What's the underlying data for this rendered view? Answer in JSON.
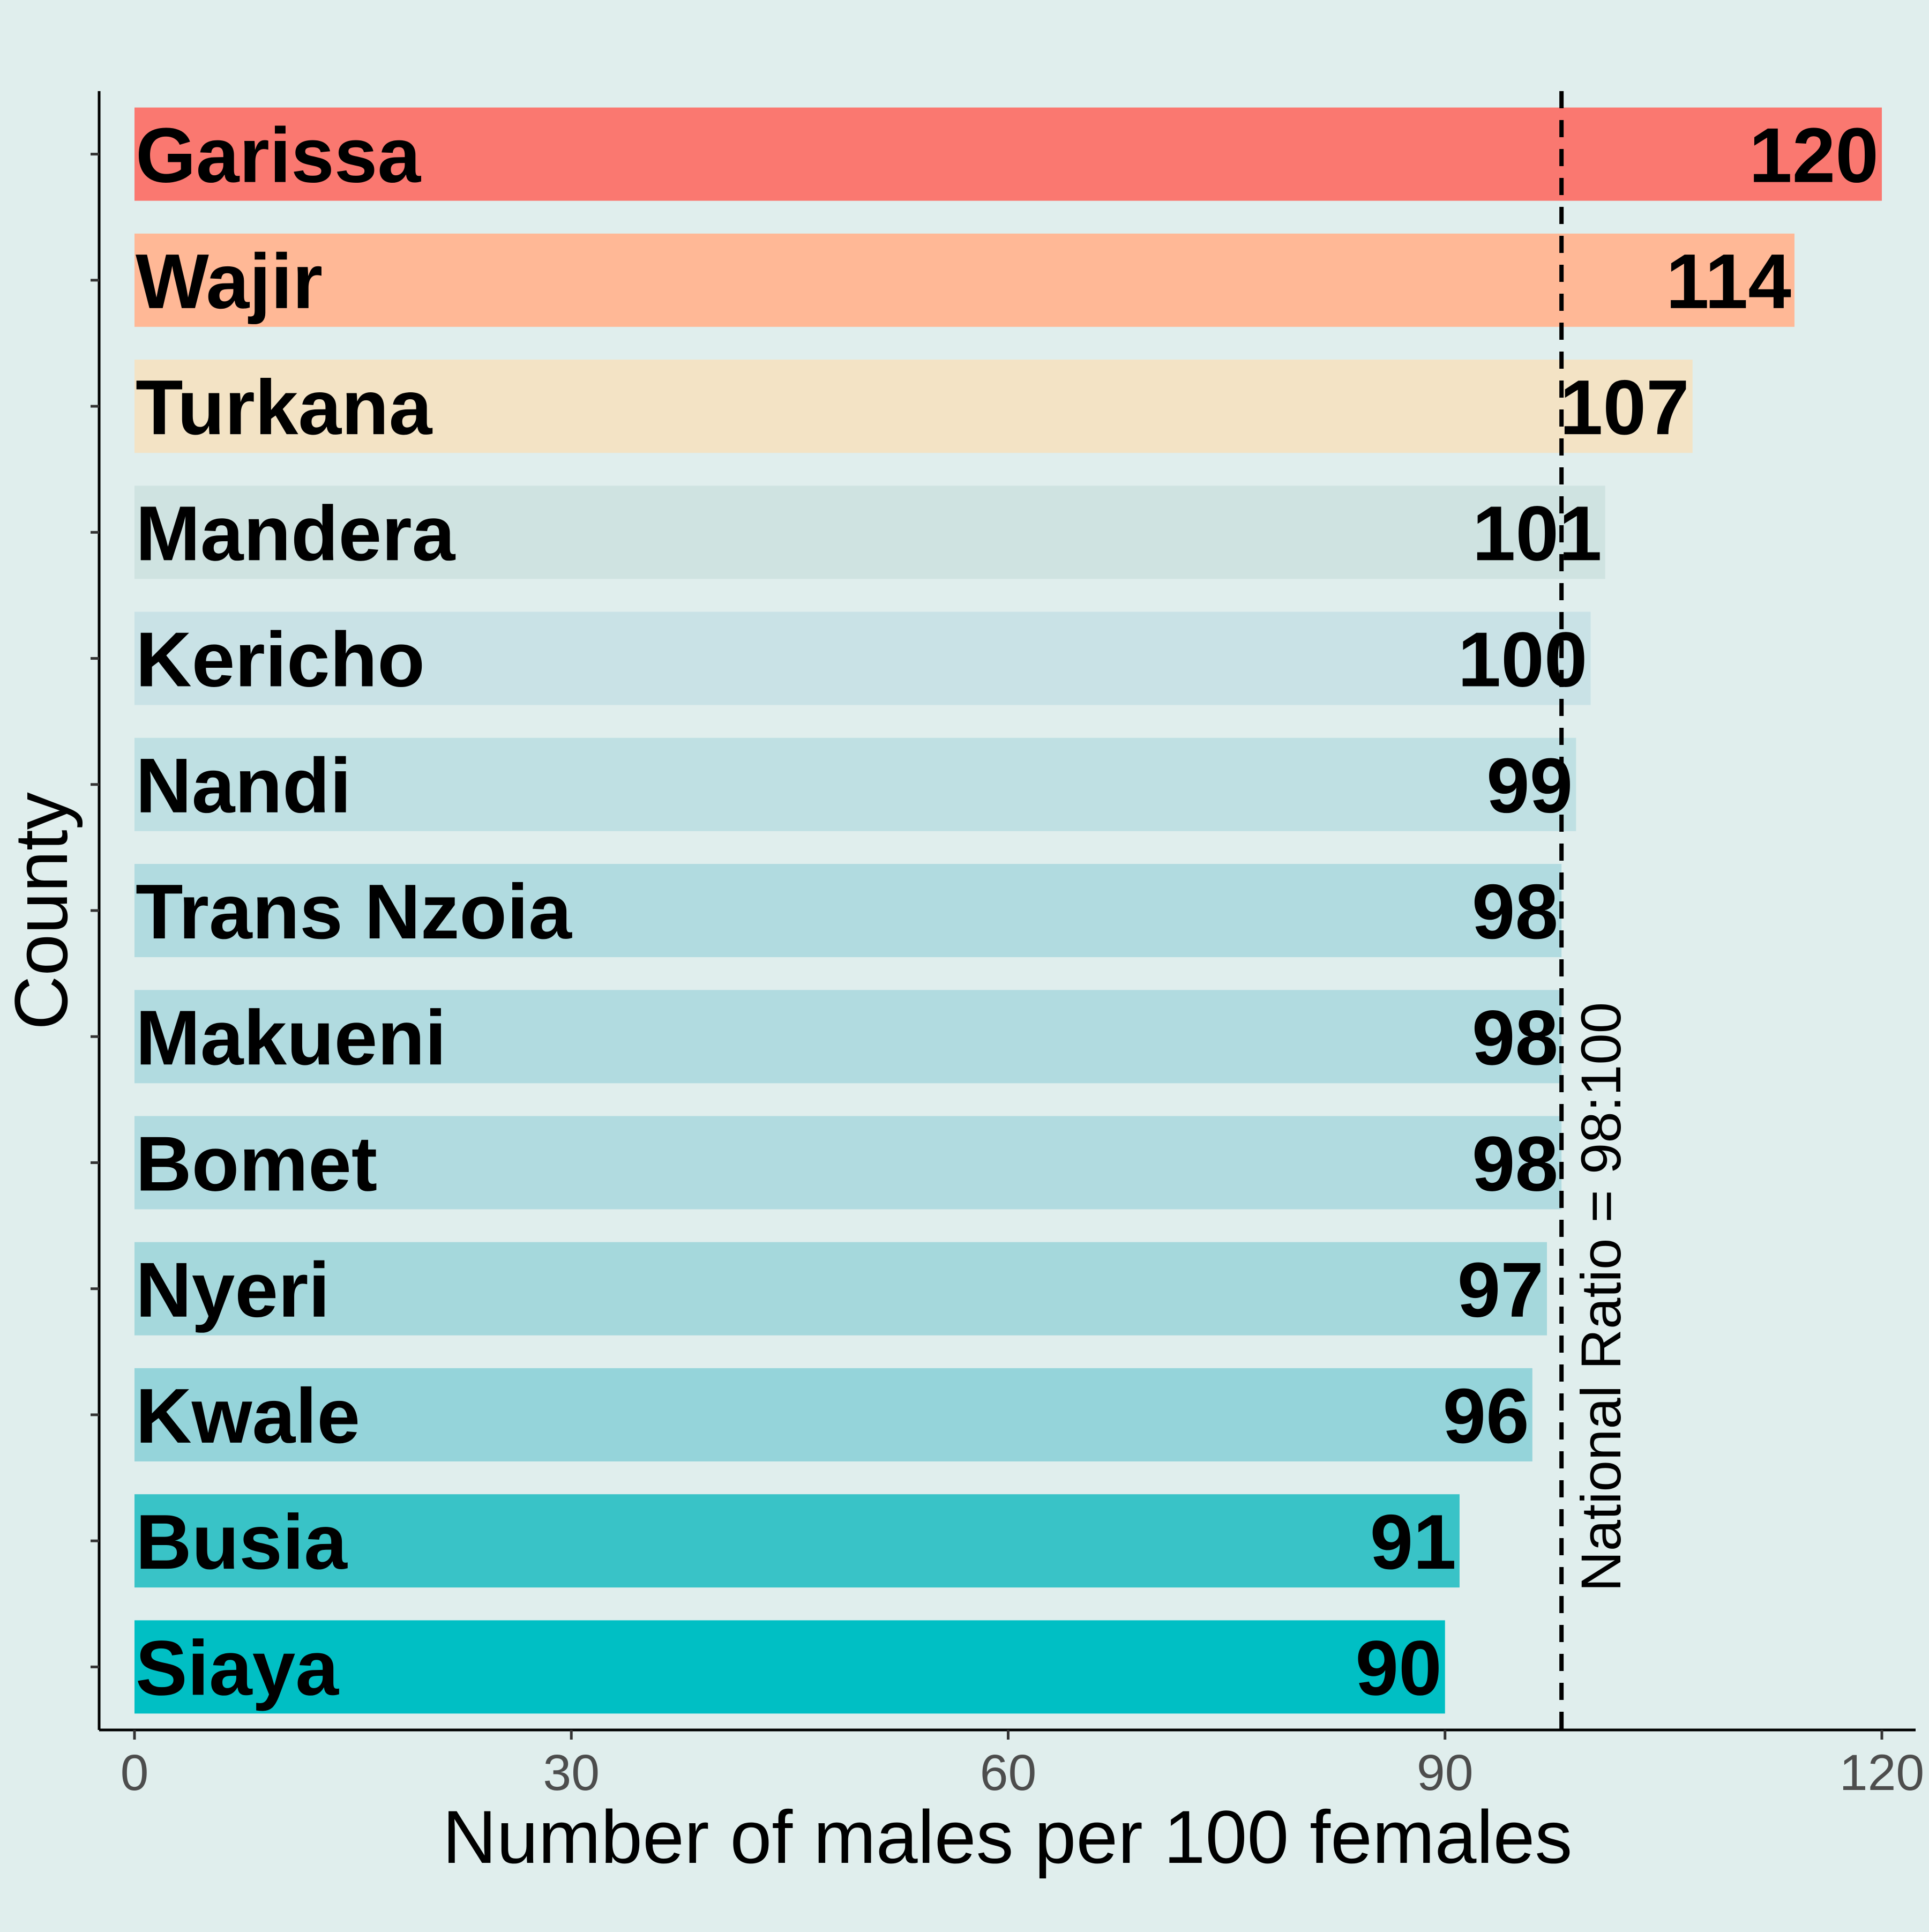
{
  "chart_data": {
    "type": "bar",
    "orientation": "horizontal",
    "categories": [
      "Garissa",
      "Wajir",
      "Turkana",
      "Mandera",
      "Kericho",
      "Nandi",
      "Trans Nzoia",
      "Makueni",
      "Bomet",
      "Nyeri",
      "Kwale",
      "Busia",
      "Siaya"
    ],
    "values": [
      120,
      114,
      107,
      101,
      100,
      99,
      98,
      98,
      98,
      97,
      96,
      91,
      90
    ],
    "value_labels": [
      "120",
      "114",
      "107",
      "101",
      "100",
      "99",
      "98",
      "98",
      "98",
      "97",
      "96",
      "91",
      "90"
    ],
    "colors": [
      "#fa7870",
      "#ffb896",
      "#f3e3c5",
      "#cfe3e1",
      "#c9e2e6",
      "#bfe0e3",
      "#b1dbe0",
      "#b1dbe0",
      "#b1dbe0",
      "#a5d8dc",
      "#95d4da",
      "#39c3c7",
      "#00bfc4"
    ],
    "xlabel": "Number of males per 100 females",
    "ylabel": "County",
    "xlim": [
      0,
      120
    ],
    "xticks": [
      0,
      30,
      60,
      90,
      120
    ],
    "xtick_labels": [
      "0",
      "30",
      "60",
      "90",
      "120"
    ],
    "reference_line": {
      "value": 98,
      "style": "dashed",
      "label": "National Ratio = 98:100"
    },
    "background": "#e0eeed",
    "grid": false,
    "legend": "none"
  }
}
